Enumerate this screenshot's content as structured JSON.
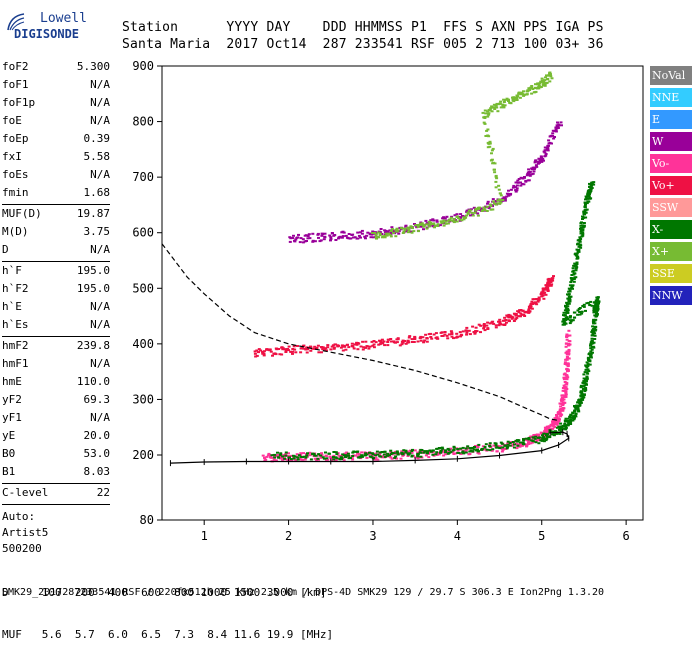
{
  "logo": {
    "top": "Lowell",
    "bottom": "DIGISONDE"
  },
  "header": {
    "line1": "Station      YYYY DAY    DDD HHMMSS P1  FFS S AXN PPS IGA PS",
    "line2": "Santa Maria  2017 Oct14  287 233541 RSF 005 2 713 100 03+ 36"
  },
  "params": [
    [
      {
        "label": "foF2",
        "value": "5.300"
      },
      {
        "label": "foF1",
        "value": "N/A"
      },
      {
        "label": "foF1p",
        "value": "N/A"
      },
      {
        "label": "foE",
        "value": "N/A"
      },
      {
        "label": "foEp",
        "value": "0.39"
      },
      {
        "label": "fxI",
        "value": "5.58"
      },
      {
        "label": "foEs",
        "value": "N/A"
      },
      {
        "label": "fmin",
        "value": "1.68"
      }
    ],
    [
      {
        "label": "MUF(D)",
        "value": "19.87"
      },
      {
        "label": "M(D)",
        "value": "3.75"
      },
      {
        "label": "D",
        "value": "N/A"
      }
    ],
    [
      {
        "label": "h`F",
        "value": "195.0"
      },
      {
        "label": "h`F2",
        "value": "195.0"
      },
      {
        "label": "h`E",
        "value": "N/A"
      },
      {
        "label": "h`Es",
        "value": "N/A"
      }
    ],
    [
      {
        "label": "hmF2",
        "value": "239.8"
      },
      {
        "label": "hmF1",
        "value": "N/A"
      },
      {
        "label": "hmE",
        "value": "110.0"
      },
      {
        "label": "yF2",
        "value": "69.3"
      },
      {
        "label": "yF1",
        "value": "N/A"
      },
      {
        "label": "yE",
        "value": "20.0"
      },
      {
        "label": "B0",
        "value": "53.0"
      },
      {
        "label": "B1",
        "value": "8.03"
      }
    ],
    [
      {
        "label": "C-level",
        "value": "22"
      }
    ]
  ],
  "auto_block": {
    "line1": "Auto:",
    "line2": "Artist5",
    "line3": "500200"
  },
  "legend": [
    {
      "label": "NoVal",
      "color": "#808080"
    },
    {
      "label": "NNE",
      "color": "#33ccff"
    },
    {
      "label": "E",
      "color": "#3399ff"
    },
    {
      "label": "W",
      "color": "#990099"
    },
    {
      "label": "Vo-",
      "color": "#ff3399"
    },
    {
      "label": "Vo+",
      "color": "#ee1144"
    },
    {
      "label": "SSW",
      "color": "#ff9999"
    },
    {
      "label": "X-",
      "color": "#007700"
    },
    {
      "label": "X+",
      "color": "#77bb33"
    },
    {
      "label": "SSE",
      "color": "#cccc22"
    },
    {
      "label": "NNW",
      "color": "#2222bb"
    }
  ],
  "footer": {
    "row1": "D     100  200  400  600  800 1000 1500 3000 [km]",
    "row2": "MUF   5.6  5.7  6.0  6.5  7.3  8.4 11.6 19.9 [MHz]",
    "row3": "SMK29_2017287233541.RSF / 220fx512h 25 kHz 2.5 km / DPS-4D SMK29 129 / 29.7 S 306.3 E Ion2Png 1.3.20"
  },
  "chart_data": {
    "type": "scatter",
    "title": "",
    "xlabel": "",
    "ylabel": "",
    "xlim": [
      0.5,
      6.2
    ],
    "ylim": [
      80,
      900
    ],
    "y_scale": "hybrid (compressed below 200 km)",
    "x_ticks": [
      1,
      2,
      3,
      4,
      5,
      6
    ],
    "y_ticks": [
      80,
      200,
      300,
      400,
      500,
      600,
      700,
      800,
      900
    ],
    "grid": false,
    "legend_position": "right",
    "series": [
      {
        "name": "Vo-",
        "color": "#ff3399",
        "points": [
          [
            1.7,
            197
          ],
          [
            2.0,
            198
          ],
          [
            2.5,
            199
          ],
          [
            3.0,
            200
          ],
          [
            3.5,
            203
          ],
          [
            4.0,
            208
          ],
          [
            4.5,
            215
          ],
          [
            4.8,
            225
          ],
          [
            5.0,
            238
          ],
          [
            5.1,
            252
          ],
          [
            5.2,
            275
          ],
          [
            5.25,
            310
          ],
          [
            5.28,
            360
          ],
          [
            5.3,
            420
          ]
        ]
      },
      {
        "name": "Vo+",
        "color": "#ee1144",
        "points": [
          [
            1.6,
            385
          ],
          [
            2.0,
            390
          ],
          [
            2.5,
            395
          ],
          [
            3.0,
            400
          ],
          [
            3.5,
            410
          ],
          [
            4.0,
            420
          ],
          [
            4.5,
            440
          ],
          [
            4.8,
            460
          ],
          [
            5.0,
            490
          ],
          [
            5.1,
            520
          ]
        ]
      },
      {
        "name": "W",
        "color": "#990099",
        "points": [
          [
            2.0,
            590
          ],
          [
            2.5,
            595
          ],
          [
            3.0,
            600
          ],
          [
            3.5,
            612
          ],
          [
            4.0,
            630
          ],
          [
            4.5,
            660
          ],
          [
            4.8,
            700
          ],
          [
            5.0,
            740
          ],
          [
            5.2,
            800
          ]
        ]
      },
      {
        "name": "X-",
        "color": "#007700",
        "points": [
          [
            1.8,
            200
          ],
          [
            2.5,
            201
          ],
          [
            3.0,
            202
          ],
          [
            3.5,
            205
          ],
          [
            4.0,
            210
          ],
          [
            4.5,
            218
          ],
          [
            5.0,
            232
          ],
          [
            5.2,
            248
          ],
          [
            5.35,
            270
          ],
          [
            5.45,
            300
          ],
          [
            5.5,
            340
          ],
          [
            5.58,
            400
          ],
          [
            5.62,
            460
          ],
          [
            5.65,
            480
          ],
          [
            5.25,
            440
          ],
          [
            5.3,
            480
          ],
          [
            5.38,
            540
          ],
          [
            5.45,
            600
          ],
          [
            5.52,
            660
          ],
          [
            5.58,
            690
          ]
        ]
      },
      {
        "name": "X+",
        "color": "#77bb33",
        "points": [
          [
            3.0,
            595
          ],
          [
            3.5,
            610
          ],
          [
            4.0,
            628
          ],
          [
            4.5,
            655
          ],
          [
            4.3,
            815
          ],
          [
            4.6,
            840
          ],
          [
            4.9,
            860
          ],
          [
            5.1,
            885
          ]
        ]
      },
      {
        "name": "Virtual height trace",
        "color": "#000000",
        "points": [
          [
            0.6,
            185
          ],
          [
            1.0,
            187
          ],
          [
            1.5,
            188
          ],
          [
            2.0,
            188
          ],
          [
            2.5,
            188
          ],
          [
            3.0,
            188
          ],
          [
            3.5,
            190
          ],
          [
            4.0,
            193
          ],
          [
            4.5,
            199
          ],
          [
            5.0,
            208
          ],
          [
            5.2,
            218
          ],
          [
            5.32,
            230
          ],
          [
            5.3,
            238
          ],
          [
            5.25,
            241
          ],
          [
            5.1,
            240
          ]
        ]
      },
      {
        "name": "Dashed profile",
        "color": "#000000",
        "points": [
          [
            0.5,
            580
          ],
          [
            0.8,
            520
          ],
          [
            1.0,
            490
          ],
          [
            1.3,
            450
          ],
          [
            1.6,
            420
          ],
          [
            2.0,
            400
          ],
          [
            2.5,
            385
          ],
          [
            3.0,
            370
          ],
          [
            3.5,
            352
          ],
          [
            4.0,
            330
          ],
          [
            4.5,
            305
          ],
          [
            4.8,
            285
          ],
          [
            5.0,
            272
          ],
          [
            5.1,
            265
          ],
          [
            5.2,
            262
          ]
        ]
      }
    ]
  }
}
